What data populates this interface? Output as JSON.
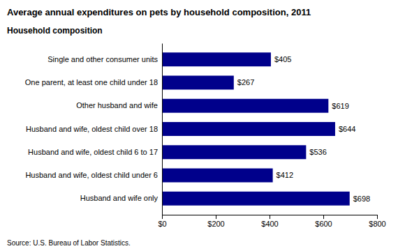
{
  "chart_data": {
    "type": "bar",
    "orientation": "horizontal",
    "title": "Average annual expenditures on pets by household composition, 2011",
    "ylabel": "Household composition",
    "annotations": [
      "Source: U.S. Bureau of Labor Statistics."
    ],
    "categories": [
      "Single and other consumer units",
      "One parent, at least one child under 18",
      "Other husband and wife",
      "Husband and wife, oldest child over 18",
      "Husband and wife, oldest child 6 to 17",
      "Husband and wife, oldest child under 6",
      "Husband and wife only"
    ],
    "values": [
      405,
      267,
      619,
      644,
      536,
      412,
      698
    ],
    "value_labels": [
      "$405",
      "$267",
      "$619",
      "$644",
      "$536",
      "$412",
      "$698"
    ],
    "data_labels": true,
    "color": "#00008B",
    "xlim": [
      0,
      800
    ],
    "xticks": [
      {
        "value": 0,
        "label": "$0"
      },
      {
        "value": 200,
        "label": "$200"
      },
      {
        "value": 400,
        "label": "$400"
      },
      {
        "value": 600,
        "label": "$600"
      },
      {
        "value": 800,
        "label": "$800"
      }
    ],
    "grid": false
  }
}
